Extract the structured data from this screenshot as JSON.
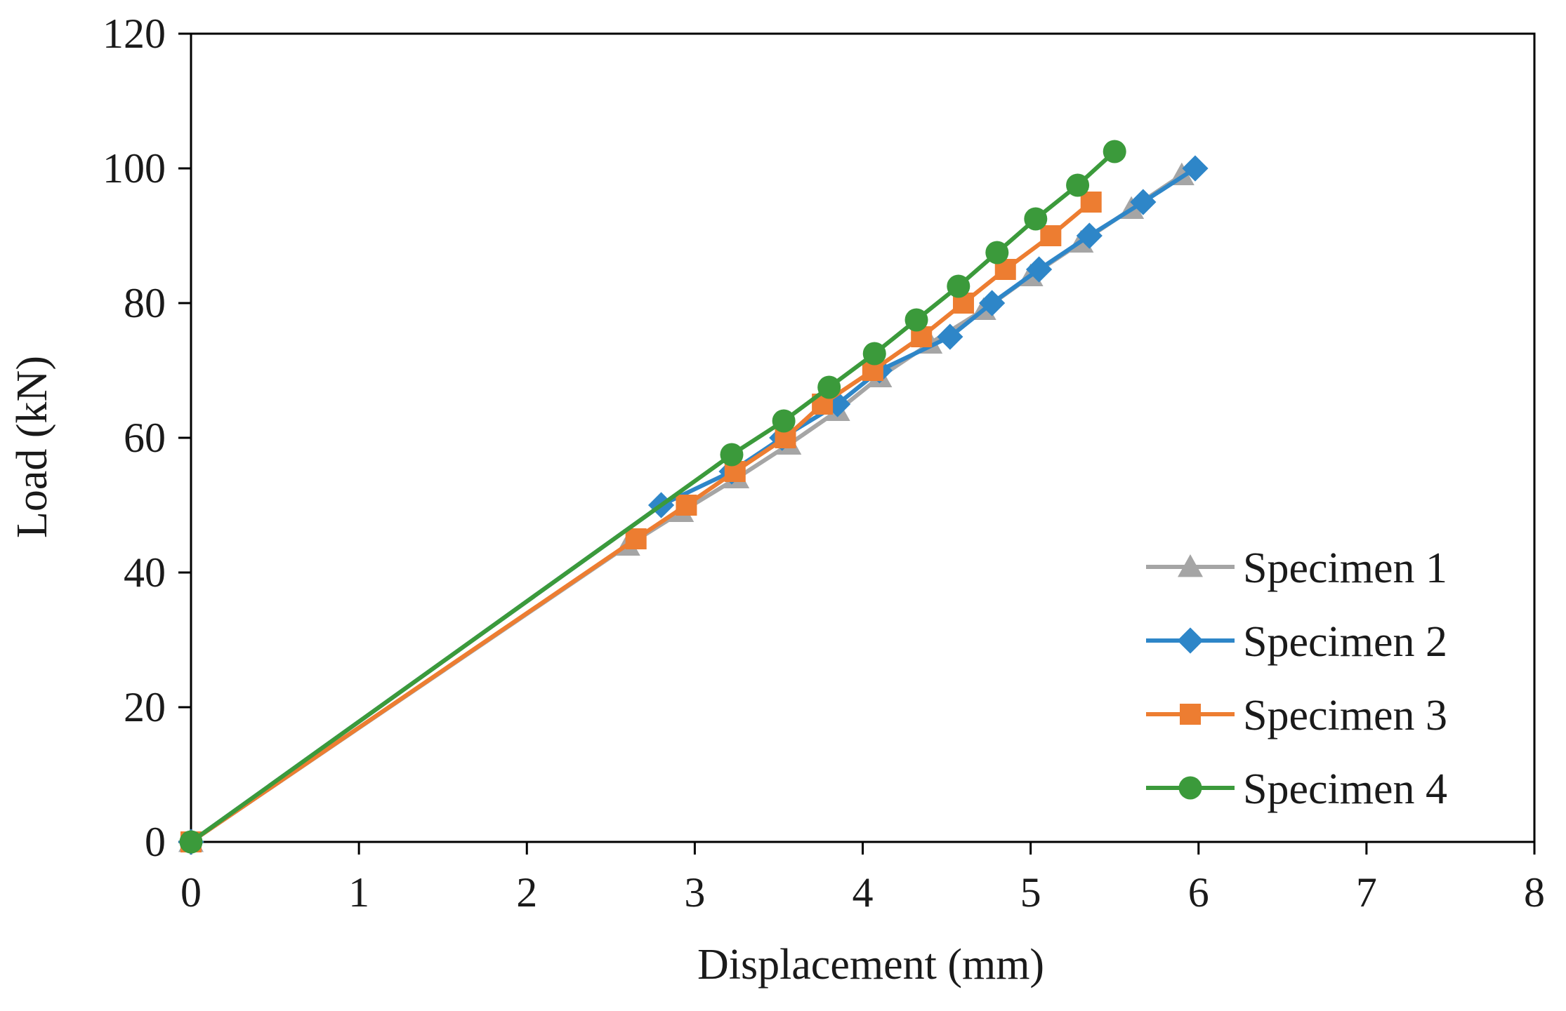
{
  "chart_data": {
    "type": "line",
    "title": "",
    "xlabel": "Displacement (mm)",
    "ylabel": "Load (kN)",
    "xlim": [
      0,
      8
    ],
    "ylim": [
      0,
      120
    ],
    "xticks": [
      0,
      1,
      2,
      3,
      4,
      5,
      6,
      7,
      8
    ],
    "yticks": [
      0,
      20,
      40,
      60,
      80,
      100,
      120
    ],
    "grid": false,
    "legend_position": "bottom-right",
    "series": [
      {
        "name": "Specimen 1",
        "color": "#a5a5a5",
        "marker": "triangle",
        "x": [
          0,
          2.6,
          2.92,
          3.25,
          3.56,
          3.85,
          4.1,
          4.4,
          4.72,
          5.0,
          5.3,
          5.6,
          5.9
        ],
        "y": [
          0,
          44,
          49,
          54,
          59,
          64,
          69,
          74,
          79,
          84,
          89,
          94,
          99
        ]
      },
      {
        "name": "Specimen 2",
        "color": "#2e86c8",
        "marker": "diamond",
        "x": [
          0,
          2.8,
          3.22,
          3.52,
          3.85,
          4.1,
          4.52,
          4.77,
          5.05,
          5.35,
          5.67,
          5.98
        ],
        "y": [
          0,
          50,
          55,
          60,
          65,
          70,
          75,
          80,
          85,
          90,
          95,
          100
        ]
      },
      {
        "name": "Specimen 3",
        "color": "#ed7d31",
        "marker": "square",
        "x": [
          0,
          2.65,
          2.95,
          3.24,
          3.54,
          3.76,
          4.06,
          4.35,
          4.6,
          4.85,
          5.12,
          5.36
        ],
        "y": [
          0,
          45,
          50,
          55,
          60,
          65,
          70,
          75,
          80,
          85,
          90,
          95
        ]
      },
      {
        "name": "Specimen 4",
        "color": "#3b9a3b",
        "marker": "circle",
        "x": [
          0,
          3.22,
          3.53,
          3.8,
          4.07,
          4.32,
          4.57,
          4.8,
          5.03,
          5.28,
          5.5
        ],
        "y": [
          0,
          57.5,
          62.5,
          67.5,
          72.5,
          77.5,
          82.5,
          87.5,
          92.5,
          97.5,
          102.5
        ]
      }
    ]
  }
}
